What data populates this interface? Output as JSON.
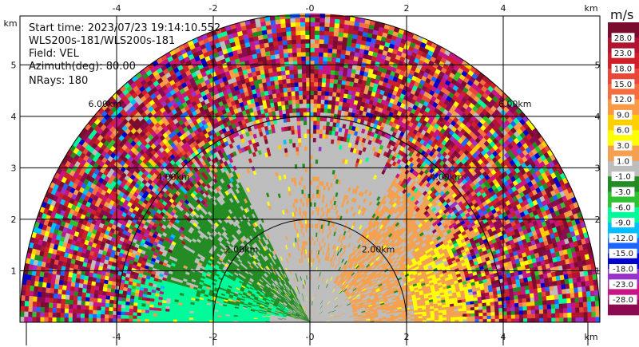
{
  "chart_data": {
    "type": "heatmap",
    "subtype": "radar-rhi-sector",
    "info": {
      "start_time": "Start time: 2023/07/23 19:14:10.552",
      "instrument": "WLS200s-181/WLS200s-181",
      "field": "Field: VEL",
      "azimuth": "Azimuth(deg): 80.00",
      "nrays": "NRays: 180"
    },
    "x_axis": {
      "unit": "km",
      "range": [
        -6.0,
        6.0
      ],
      "ticks": [
        -4,
        -2,
        0,
        2,
        4
      ],
      "tick_labels": [
        "-4",
        "-2",
        "-0",
        "2",
        "4"
      ]
    },
    "y_axis": {
      "unit": "km",
      "range": [
        0,
        5.95
      ],
      "ticks": [
        1,
        2,
        3,
        4,
        5
      ],
      "tick_labels": [
        "1",
        "2",
        "3",
        "4",
        "5"
      ]
    },
    "grid": true,
    "range_rings": [
      {
        "radius": 2,
        "label": "2.00km"
      },
      {
        "radius": 4,
        "label": "4.00km"
      },
      {
        "radius": 6,
        "label": "6.00km"
      }
    ],
    "colorbar": {
      "unit": "m/s",
      "labels": [
        "28.0",
        "23.0",
        "18.0",
        "15.0",
        "12.0",
        "9.0",
        "6.0",
        "3.0",
        "1.0",
        "-1.0",
        "-3.0",
        "-6.0",
        "-9.0",
        "-12.0",
        "-15.0",
        "-18.0",
        "-23.0",
        "-28.0"
      ],
      "colors": [
        "#7a0c2e",
        "#b0142e",
        "#d11f2a",
        "#e8473a",
        "#f46d3f",
        "#fb9a44",
        "#ffd000",
        "#ffff00",
        "#f3a050",
        "#bdbdbd",
        "#228b22",
        "#2fc12f",
        "#00fa9a",
        "#00bfff",
        "#1e64ff",
        "#0000cd",
        "#9932cc",
        "#c71585",
        "#8b0a50"
      ]
    }
  }
}
